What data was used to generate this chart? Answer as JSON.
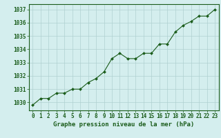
{
  "x": [
    0,
    1,
    2,
    3,
    4,
    5,
    6,
    7,
    8,
    9,
    10,
    11,
    12,
    13,
    14,
    15,
    16,
    17,
    18,
    19,
    20,
    21,
    22,
    23
  ],
  "y": [
    1029.8,
    1030.3,
    1030.3,
    1030.7,
    1030.7,
    1031.0,
    1031.0,
    1031.5,
    1031.8,
    1032.3,
    1033.3,
    1033.7,
    1033.3,
    1033.3,
    1033.7,
    1033.7,
    1034.4,
    1034.4,
    1035.3,
    1035.8,
    1036.1,
    1036.5,
    1036.5,
    1037.0
  ],
  "line_color": "#1a5c1a",
  "marker": "D",
  "marker_size": 2.0,
  "bg_color": "#d4eeee",
  "grid_color": "#afd0d0",
  "tick_color": "#1a5c1a",
  "xlabel": "Graphe pression niveau de la mer (hPa)",
  "xlabel_color": "#1a5c1a",
  "xlabel_fontsize": 6.5,
  "ytick_labels": [
    1030,
    1031,
    1032,
    1033,
    1034,
    1035,
    1036,
    1037
  ],
  "ylim": [
    1029.4,
    1037.4
  ],
  "xlim": [
    -0.5,
    23.5
  ],
  "xtick_labels": [
    "0",
    "1",
    "2",
    "3",
    "4",
    "5",
    "6",
    "7",
    "8",
    "9",
    "10",
    "11",
    "12",
    "13",
    "14",
    "15",
    "16",
    "17",
    "18",
    "19",
    "20",
    "21",
    "22",
    "23"
  ],
  "tick_fontsize": 5.5,
  "linewidth": 0.8
}
